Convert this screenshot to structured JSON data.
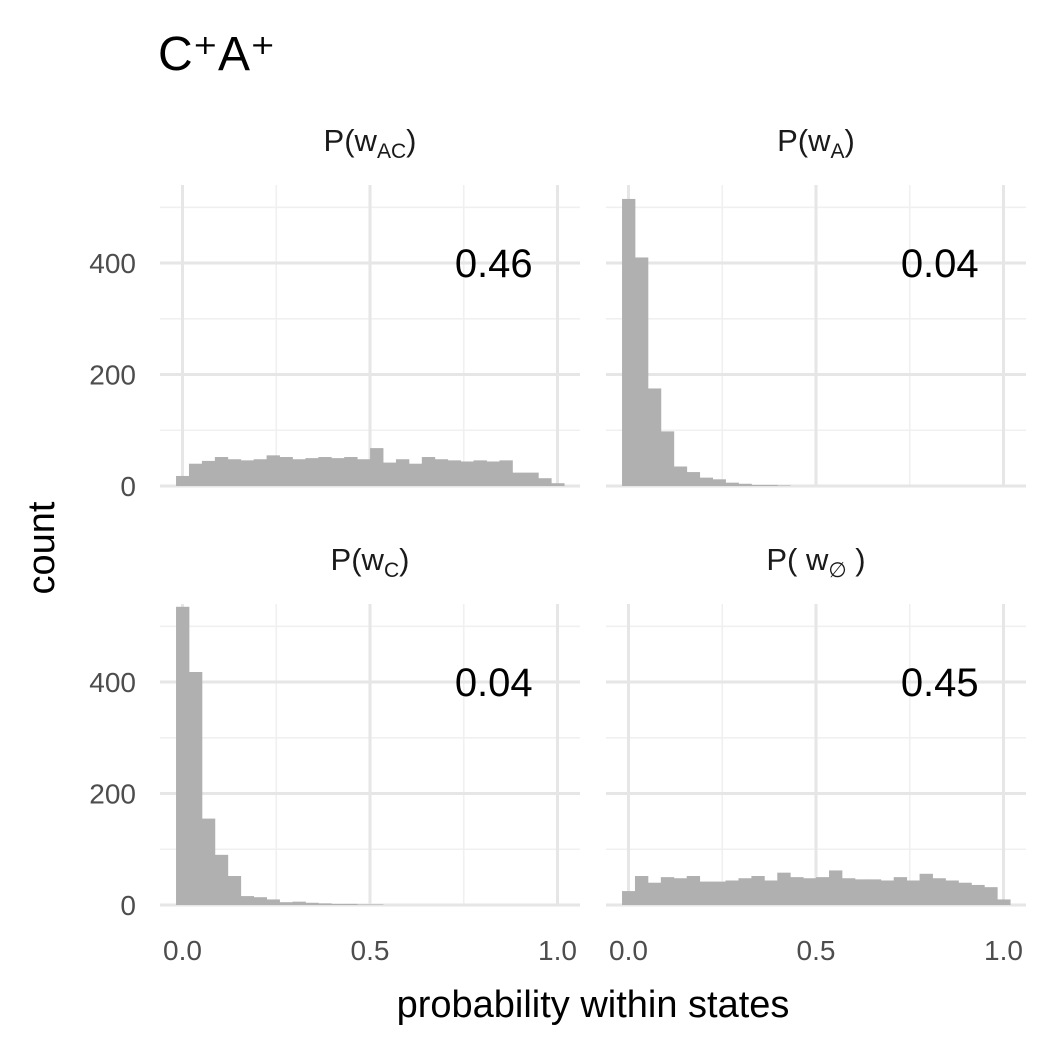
{
  "chart_data": {
    "type": "bar",
    "title": "C⁺A⁺",
    "xlabel": "probability within states",
    "ylabel": "count",
    "xlim": [
      -0.06,
      1.06
    ],
    "ylim": [
      0,
      540
    ],
    "x_breaks": [
      0.0,
      0.5,
      1.0
    ],
    "x_tick_labels": [
      "0.0",
      "0.5",
      "1.0"
    ],
    "y_breaks": [
      0,
      200,
      400
    ],
    "y_tick_labels": [
      "0",
      "200",
      "400"
    ],
    "x_minor_breaks": [
      0.25,
      0.75
    ],
    "y_minor_breaks": [
      100,
      300,
      500
    ],
    "grid": true,
    "legend": "none",
    "bar_color": "#b0b0b0",
    "bins": {
      "first_center": 0.0,
      "width": 0.0345,
      "count": 30
    },
    "panels": [
      {
        "id": "wac",
        "label_main": "P(w",
        "label_sub": "AC",
        "label_end": ")",
        "annotation": "0.46",
        "values": [
          18,
          40,
          45,
          52,
          48,
          46,
          48,
          55,
          52,
          48,
          50,
          52,
          50,
          52,
          48,
          68,
          42,
          48,
          40,
          52,
          48,
          46,
          44,
          46,
          44,
          46,
          24,
          24,
          14,
          5
        ]
      },
      {
        "id": "wa",
        "label_main": "P(w",
        "label_sub": "A",
        "label_end": ")",
        "annotation": "0.04",
        "values": [
          515,
          410,
          175,
          98,
          35,
          25,
          15,
          12,
          6,
          4,
          2,
          2,
          1,
          0,
          0,
          0,
          0,
          0,
          0,
          0,
          0,
          0,
          0,
          0,
          0,
          0,
          0,
          0,
          0,
          0
        ]
      },
      {
        "id": "wc",
        "label_main": "P(w",
        "label_sub": "C",
        "label_end": ")",
        "annotation": "0.04",
        "values": [
          535,
          418,
          155,
          90,
          52,
          16,
          14,
          10,
          5,
          6,
          4,
          3,
          2,
          2,
          1,
          1,
          0,
          0,
          0,
          0,
          0,
          0,
          0,
          0,
          0,
          0,
          0,
          0,
          0,
          0
        ]
      },
      {
        "id": "w0",
        "label_main": "P( w",
        "label_sub": "∅",
        "label_end": " )",
        "annotation": "0.45",
        "values": [
          25,
          52,
          40,
          50,
          48,
          52,
          42,
          42,
          44,
          48,
          52,
          44,
          58,
          50,
          48,
          50,
          62,
          48,
          46,
          46,
          44,
          50,
          44,
          56,
          48,
          44,
          40,
          36,
          32,
          10
        ]
      }
    ]
  }
}
